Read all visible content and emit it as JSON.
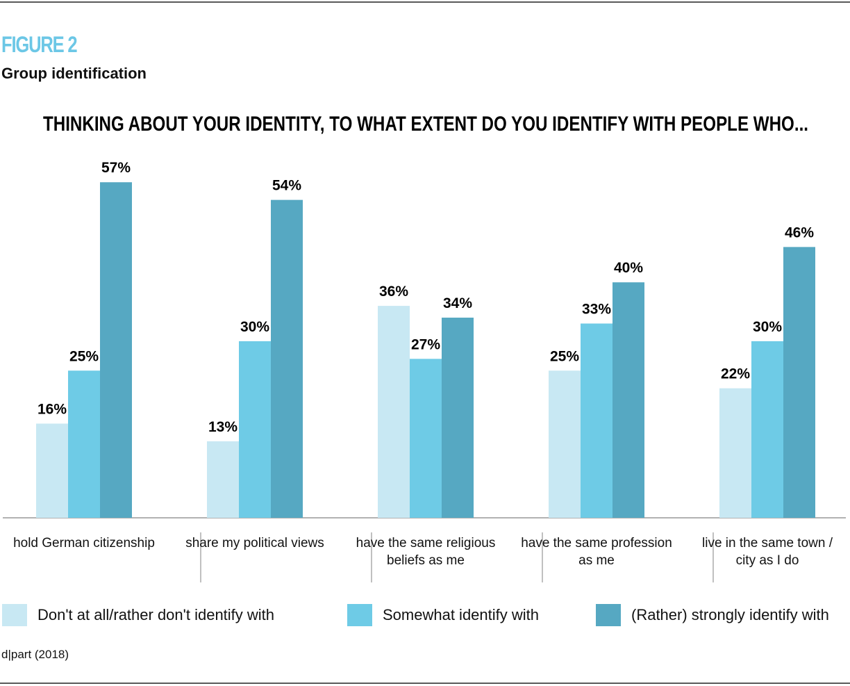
{
  "figure_label": "FIGURE 2",
  "subtitle": "Group identification",
  "source": "d|part (2018)",
  "chart_data": {
    "type": "bar",
    "title": "THINKING ABOUT YOUR IDENTITY, TO WHAT EXTENT DO YOU IDENTIFY WITH PEOPLE WHO...",
    "categories": [
      "hold German citizenship",
      "share my political views",
      "have the same religious beliefs as me",
      "have the same profession as me",
      "live in the same town / city as I do"
    ],
    "series": [
      {
        "name": "Don't at all/rather don't identify with",
        "color": "#c8e8f3",
        "values": [
          16,
          13,
          36,
          25,
          22
        ],
        "value_labels": [
          "16%",
          "13%",
          "36%",
          "25%",
          "22%"
        ]
      },
      {
        "name": "Somewhat identify with",
        "color": "#6ecbe6",
        "values": [
          25,
          30,
          27,
          33,
          30
        ],
        "value_labels": [
          "25%",
          "30%",
          "27%",
          "33%",
          "30%"
        ]
      },
      {
        "name": "(Rather) strongly identify with",
        "color": "#56a8c2",
        "values": [
          57,
          54,
          34,
          40,
          46
        ],
        "value_labels": [
          "57%",
          "54%",
          "34%",
          "40%",
          "46%"
        ]
      }
    ],
    "legend": "bottom"
  }
}
